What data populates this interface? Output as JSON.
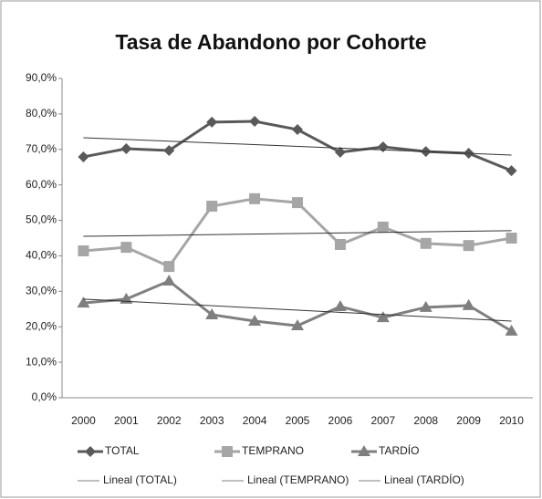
{
  "chart_data": {
    "type": "line",
    "title": "Tasa de Abandono por Cohorte",
    "categories": [
      "2000",
      "2001",
      "2002",
      "2003",
      "2004",
      "2005",
      "2006",
      "2007",
      "2008",
      "2009",
      "2010"
    ],
    "series": [
      {
        "name": "TOTAL",
        "color": "#595959",
        "marker": "diamond",
        "values": [
          67.9,
          70.2,
          69.7,
          77.7,
          77.9,
          75.6,
          69.2,
          70.7,
          69.4,
          68.9,
          64.0
        ]
      },
      {
        "name": "TEMPRANO",
        "color": "#a6a6a6",
        "marker": "square",
        "values": [
          41.4,
          42.4,
          37.0,
          54.0,
          56.1,
          55.0,
          43.2,
          48.1,
          43.5,
          42.9,
          45.0
        ]
      },
      {
        "name": "TARDÍO",
        "color": "#7f7f7f",
        "marker": "triangle",
        "values": [
          26.7,
          27.8,
          32.9,
          23.4,
          21.6,
          20.3,
          25.7,
          22.6,
          25.5,
          26.0,
          18.8
        ]
      }
    ],
    "trendlines": [
      {
        "name": "Lineal (TOTAL)",
        "color": "#333333",
        "values": [
          73.3,
          68.4
        ]
      },
      {
        "name": "Lineal (TEMPRANO)",
        "color": "#333333",
        "values": [
          45.5,
          47.1
        ]
      },
      {
        "name": "Lineal (TARDÍO)",
        "color": "#333333",
        "values": [
          27.8,
          21.6
        ]
      }
    ],
    "ylim": [
      0,
      90
    ],
    "yticks": [
      {
        "value": 0,
        "label": "0,0%"
      },
      {
        "value": 10,
        "label": "10,0%"
      },
      {
        "value": 20,
        "label": "20,0%"
      },
      {
        "value": 30,
        "label": "30,0%"
      },
      {
        "value": 40,
        "label": "40,0%"
      },
      {
        "value": 50,
        "label": "50,0%"
      },
      {
        "value": 60,
        "label": "60,0%"
      },
      {
        "value": 70,
        "label": "70,0%"
      },
      {
        "value": 80,
        "label": "80,0%"
      },
      {
        "value": 90,
        "label": "90,0%"
      }
    ],
    "grid": false,
    "legend": "bottom"
  }
}
